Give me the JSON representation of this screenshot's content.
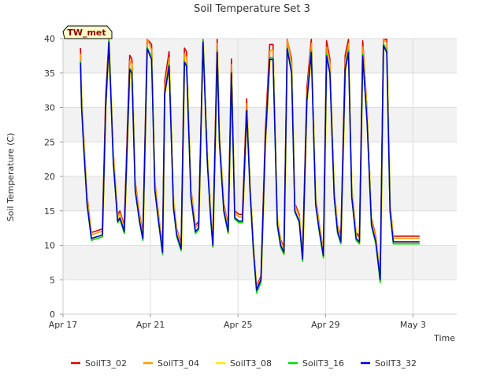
{
  "chart_data": {
    "type": "line",
    "title": "Soil Temperature Set 3",
    "xlabel": "Time",
    "ylabel": "Soil Temperature (C)",
    "site_label": "TW_met",
    "x_unit": "day of April (May 3 = day 33)",
    "xlim": [
      17,
      35
    ],
    "ylim": [
      0,
      40
    ],
    "yticks": [
      0,
      5,
      10,
      15,
      20,
      25,
      30,
      35,
      40
    ],
    "xticks": [
      {
        "value": 17,
        "label": "Apr 17"
      },
      {
        "value": 21,
        "label": "Apr 21"
      },
      {
        "value": 25,
        "label": "Apr 25"
      },
      {
        "value": 29,
        "label": "Apr 29"
      },
      {
        "value": 33,
        "label": "May 3"
      }
    ],
    "grid": true,
    "legend_position": "bottom",
    "series": [
      {
        "name": "SoilT3_02",
        "color": "#dd0000",
        "offset": 0.3,
        "amp": 1.05,
        "lag": 0.0
      },
      {
        "name": "SoilT3_04",
        "color": "#ff9900",
        "offset": 0.2,
        "amp": 1.03,
        "lag": 0.01
      },
      {
        "name": "SoilT3_08",
        "color": "#ffee00",
        "offset": -0.2,
        "amp": 1.0,
        "lag": 0.02
      },
      {
        "name": "SoilT3_16",
        "color": "#00dd00",
        "offset": -0.5,
        "amp": 1.02,
        "lag": 0.0
      },
      {
        "name": "SoilT3_32",
        "color": "#0000cc",
        "offset": 0.0,
        "amp": 1.0,
        "lag": 0.0
      }
    ],
    "base_profile": {
      "x": [
        17.8,
        17.85,
        17.95,
        18.1,
        18.3,
        18.5,
        18.8,
        18.95,
        19.1,
        19.3,
        19.5,
        19.6,
        19.8,
        20.05,
        20.15,
        20.3,
        20.5,
        20.65,
        20.85,
        21.05,
        21.2,
        21.35,
        21.55,
        21.65,
        21.85,
        22.05,
        22.2,
        22.4,
        22.55,
        22.65,
        22.85,
        23.05,
        23.2,
        23.4,
        23.6,
        23.75,
        23.85,
        24.05,
        24.15,
        24.35,
        24.55,
        24.7,
        24.85,
        25.05,
        25.2,
        25.4,
        25.55,
        25.7,
        25.85,
        26.05,
        26.25,
        26.45,
        26.6,
        26.8,
        26.95,
        27.1,
        27.25,
        27.45,
        27.6,
        27.8,
        27.95,
        28.15,
        28.35,
        28.55,
        28.7,
        28.9,
        29.05,
        29.2,
        29.4,
        29.55,
        29.7,
        29.9,
        30.05,
        30.2,
        30.4,
        30.55,
        30.7,
        30.9,
        31.1,
        31.3,
        31.5,
        31.65,
        31.8,
        31.95,
        32.1,
        32.3,
        32.5,
        32.65,
        32.8,
        32.95,
        33.1,
        33.3
      ],
      "y": [
        36.5,
        30.0,
        24.0,
        16.0,
        11.0,
        11.2,
        11.5,
        30.0,
        39.5,
        22.0,
        13.5,
        14.0,
        12.0,
        35.5,
        35.0,
        18.0,
        13.5,
        11.0,
        38.5,
        37.0,
        18.0,
        14.0,
        9.0,
        32.0,
        36.0,
        15.5,
        11.5,
        9.5,
        36.5,
        36.0,
        17.0,
        12.0,
        12.5,
        39.5,
        22.0,
        14.0,
        10.0,
        38.0,
        25.0,
        15.0,
        12.0,
        35.0,
        14.0,
        13.5,
        13.5,
        29.5,
        18.0,
        9.5,
        3.5,
        5.0,
        25.0,
        37.0,
        37.0,
        13.0,
        10.0,
        9.0,
        38.5,
        35.0,
        15.0,
        13.5,
        8.0,
        31.0,
        38.0,
        16.0,
        12.5,
        8.5,
        37.5,
        35.0,
        17.0,
        12.0,
        10.5,
        35.5,
        38.0,
        17.0,
        11.0,
        10.5,
        37.5,
        28.0,
        13.0,
        10.5,
        5.0,
        39.0,
        38.0,
        15.0,
        10.5,
        10.5,
        10.5,
        10.5,
        10.5,
        10.5,
        10.5,
        10.5
      ]
    }
  },
  "legend": {
    "items": [
      "SoilT3_02",
      "SoilT3_04",
      "SoilT3_08",
      "SoilT3_16",
      "SoilT3_32"
    ]
  }
}
